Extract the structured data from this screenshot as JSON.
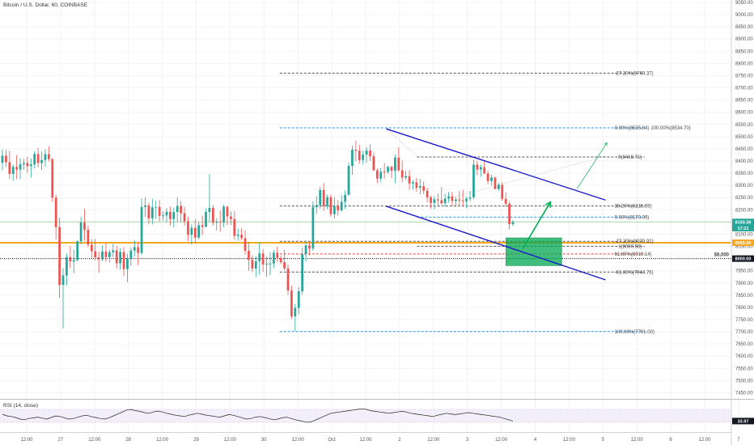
{
  "chart_data": {
    "type": "candlestick",
    "title": "Bitcoin / U.S. Dollar, 60, COINBASE",
    "price_axis": {
      "min": 7425,
      "max": 9060,
      "ticks": [
        9050,
        9000,
        8950,
        8900,
        8850,
        8800,
        8750,
        8700,
        8650,
        8600,
        8550,
        8500,
        8450,
        8400,
        8350,
        8300,
        8250,
        8200,
        8150,
        8100,
        8050,
        8000,
        7950,
        7900,
        7850,
        7800,
        7750,
        7700,
        7650,
        7600,
        7550,
        7500,
        7450
      ],
      "tick_labels": [
        "9050.00",
        "9000.00",
        "8950.00",
        "8900.00",
        "8850.00",
        "8800.00",
        "8750.00",
        "8700.00",
        "8650.00",
        "8600.00",
        "8550.00",
        "8500.00",
        "8450.00",
        "8400.00",
        "8350.00",
        "8300.00",
        "8250.00",
        "8200.00",
        "8150.00",
        "8100.00",
        "8050.00",
        "8000.00",
        "7950.00",
        "7900.00",
        "7850.00",
        "7800.00",
        "7750.00",
        "7700.00",
        "7650.00",
        "7600.00",
        "7550.00",
        "7500.00",
        "7450.00"
      ]
    },
    "time_axis": {
      "labels": [
        "12:00",
        "27",
        "12:00",
        "28",
        "12:00",
        "29",
        "12:00",
        "30",
        "12:00",
        "Oct",
        "12:00",
        "2",
        "12:00",
        "3",
        "12:00",
        "4",
        "12:00",
        "5",
        "12:00",
        "6",
        "12:00",
        "7"
      ]
    },
    "price_badges": [
      {
        "label": "8150.36",
        "value": 8150.36,
        "color": "#26a69a"
      },
      {
        "label": "17:21",
        "value": 8125,
        "color": "#26a69a"
      },
      {
        "label": "8065.00",
        "value": 8065,
        "color": "#f5a623"
      },
      {
        "label": "8000.00",
        "value": 8000,
        "color": "#131722"
      }
    ],
    "horizontal_lines": [
      {
        "value": 8150.36,
        "color": "#a5d6a7",
        "style": "solid"
      },
      {
        "value": 8065,
        "color": "#f5a623",
        "style": "solid",
        "label": ""
      },
      {
        "value": 8000,
        "color": "#000000",
        "style": "dotted",
        "label": "$8,000"
      }
    ],
    "fib_levels": [
      {
        "label": "-27.20%(8760.37)",
        "value": 8760.37,
        "color": "#555555"
      },
      {
        "label": "0.00%(8535.84)",
        "value": 8535.84,
        "color": "#2196f3",
        "extra": "100.00%(8534.70)"
      },
      {
        "label": "0(8416.71)",
        "value": 8416.71,
        "color": "#555555"
      },
      {
        "label": "38.20%(8215.69)",
        "value": 8215.69,
        "color": "#555555"
      },
      {
        "label": "0.00%(8170.09)",
        "value": 8170.09,
        "color": "#2196f3"
      },
      {
        "label": "-27.20%(8070.92)",
        "value": 8070.92,
        "color": "#555555"
      },
      {
        "label": "1(8050.56)",
        "value": 8050.56,
        "color": "#555555"
      },
      {
        "label": "61.80%(8019.14)",
        "value": 8019.14,
        "color": "#f44336"
      },
      {
        "label": "-61.80%(7944.76)",
        "value": 7944.76,
        "color": "#555555"
      },
      {
        "label": "100.00%(7701.00)",
        "value": 7701.0,
        "color": "#2196f3"
      }
    ],
    "rsi": {
      "title": "RSI (14, close)",
      "current_label": "33.97",
      "current": 33.97,
      "values": [
        55,
        50,
        48,
        45,
        40,
        38,
        42,
        44,
        46,
        43,
        40,
        45,
        50,
        48,
        44,
        40,
        42,
        46,
        50,
        52,
        48,
        45,
        42,
        40,
        44,
        50,
        56,
        62,
        68,
        70,
        66,
        64,
        60,
        58,
        62,
        65,
        62,
        58,
        55,
        52,
        50,
        48,
        52,
        55,
        58,
        55,
        52,
        50,
        48,
        46,
        50,
        54,
        52,
        48,
        44,
        40,
        42,
        46,
        48,
        45,
        42,
        38,
        40,
        44,
        46,
        42,
        38,
        35,
        32,
        30,
        34,
        40,
        46,
        52,
        58,
        60,
        62,
        64,
        66,
        68,
        70,
        72,
        70,
        66,
        64,
        62,
        60,
        58,
        60,
        62,
        64,
        62,
        58,
        56,
        54,
        52,
        50,
        48,
        52,
        55,
        58,
        56,
        54,
        56,
        58,
        60,
        58,
        56,
        54,
        52,
        50,
        48,
        46,
        42,
        38,
        34
      ]
    },
    "candles": [
      [
        8393,
        8448,
        8362,
        8422
      ],
      [
        8422,
        8447,
        8376,
        8395
      ],
      [
        8395,
        8442,
        8327,
        8347
      ],
      [
        8347,
        8385,
        8319,
        8376
      ],
      [
        8376,
        8425,
        8326,
        8365
      ],
      [
        8365,
        8411,
        8325,
        8387
      ],
      [
        8387,
        8409,
        8364,
        8392
      ],
      [
        8392,
        8418,
        8351,
        8379
      ],
      [
        8379,
        8410,
        8332,
        8386
      ],
      [
        8386,
        8441,
        8369,
        8429
      ],
      [
        8429,
        8454,
        8374,
        8392
      ],
      [
        8392,
        8439,
        8364,
        8404
      ],
      [
        8404,
        8448,
        8377,
        8428
      ],
      [
        8428,
        8460,
        8398,
        8408
      ],
      [
        8408,
        8412,
        8233,
        8250
      ],
      [
        8250,
        8262,
        8079,
        8129
      ],
      [
        8129,
        8168,
        7839,
        7892
      ],
      [
        7892,
        7961,
        7714,
        7931
      ],
      [
        7931,
        8021,
        7890,
        8006
      ],
      [
        8006,
        8051,
        7960,
        7988
      ],
      [
        7988,
        8036,
        7941,
        7994
      ],
      [
        7994,
        8075,
        7988,
        8071
      ],
      [
        8071,
        8172,
        8058,
        8148
      ],
      [
        8148,
        8203,
        8072,
        8118
      ],
      [
        8118,
        8136,
        8047,
        8057
      ],
      [
        8057,
        8080,
        7997,
        8030
      ],
      [
        8030,
        8081,
        7992,
        8005
      ],
      [
        8005,
        8029,
        7942,
        7997
      ],
      [
        7997,
        8054,
        7990,
        8029
      ],
      [
        8029,
        8064,
        7987,
        8006
      ],
      [
        8006,
        8036,
        7985,
        8026
      ],
      [
        8026,
        8060,
        8006,
        8034
      ],
      [
        8034,
        8052,
        7960,
        7981
      ],
      [
        7981,
        8043,
        7954,
        8027
      ],
      [
        8027,
        8047,
        7929,
        7957
      ],
      [
        7957,
        8020,
        7904,
        8002
      ],
      [
        8002,
        8046,
        7970,
        8033
      ],
      [
        8033,
        8075,
        8009,
        8047
      ],
      [
        8047,
        8066,
        7973,
        8023
      ],
      [
        8023,
        8247,
        8014,
        8212
      ],
      [
        8212,
        8252,
        8171,
        8218
      ],
      [
        8218,
        8230,
        8140,
        8165
      ],
      [
        8165,
        8245,
        8140,
        8210
      ],
      [
        8210,
        8237,
        8163,
        8212
      ],
      [
        8212,
        8240,
        8152,
        8175
      ],
      [
        8175,
        8194,
        8156,
        8177
      ],
      [
        8177,
        8207,
        8149,
        8192
      ],
      [
        8192,
        8213,
        8136,
        8162
      ],
      [
        8162,
        8209,
        8128,
        8191
      ],
      [
        8191,
        8251,
        8151,
        8216
      ],
      [
        8216,
        8236,
        8152,
        8186
      ],
      [
        8186,
        8212,
        8135,
        8153
      ],
      [
        8153,
        8172,
        8072,
        8097
      ],
      [
        8097,
        8141,
        8057,
        8126
      ],
      [
        8126,
        8161,
        8063,
        8086
      ],
      [
        8086,
        8150,
        8079,
        8137
      ],
      [
        8137,
        8176,
        8096,
        8130
      ],
      [
        8130,
        8207,
        8129,
        8191
      ],
      [
        8191,
        8347,
        8150,
        8208
      ],
      [
        8208,
        8220,
        8135,
        8147
      ],
      [
        8147,
        8166,
        8115,
        8151
      ],
      [
        8151,
        8197,
        8110,
        8148
      ],
      [
        8148,
        8221,
        8129,
        8213
      ],
      [
        8213,
        8216,
        8137,
        8173
      ],
      [
        8173,
        8193,
        8138,
        8162
      ],
      [
        8162,
        8195,
        8077,
        8093
      ],
      [
        8093,
        8122,
        8073,
        8098
      ],
      [
        8098,
        8124,
        8075,
        8084
      ],
      [
        8084,
        8116,
        8016,
        8032
      ],
      [
        8032,
        8069,
        7950,
        7995
      ],
      [
        7995,
        8014,
        7944,
        7959
      ],
      [
        7959,
        8011,
        7925,
        7989
      ],
      [
        7989,
        8067,
        7934,
        8021
      ],
      [
        8021,
        8039,
        7946,
        7976
      ],
      [
        7976,
        8008,
        7925,
        7979
      ],
      [
        7979,
        8026,
        7932,
        7980
      ],
      [
        7980,
        8035,
        7961,
        8024
      ],
      [
        8024,
        8049,
        7986,
        8003
      ],
      [
        8003,
        8013,
        7977,
        7985
      ],
      [
        7985,
        8036,
        7952,
        7960
      ],
      [
        7960,
        7976,
        7851,
        7869
      ],
      [
        7869,
        7889,
        7753,
        7763
      ],
      [
        7763,
        7815,
        7703,
        7798
      ],
      [
        7798,
        7883,
        7772,
        7866
      ],
      [
        7866,
        8045,
        7852,
        8018
      ],
      [
        8018,
        8068,
        7989,
        8054
      ],
      [
        8054,
        8066,
        8013,
        8041
      ],
      [
        8041,
        8234,
        8032,
        8211
      ],
      [
        8211,
        8256,
        8183,
        8219
      ],
      [
        8219,
        8294,
        8204,
        8281
      ],
      [
        8281,
        8310,
        8195,
        8216
      ],
      [
        8216,
        8262,
        8202,
        8252
      ],
      [
        8252,
        8262,
        8172,
        8182
      ],
      [
        8182,
        8250,
        8164,
        8216
      ],
      [
        8216,
        8240,
        8176,
        8198
      ],
      [
        8198,
        8260,
        8192,
        8233
      ],
      [
        8233,
        8279,
        8204,
        8261
      ],
      [
        8261,
        8394,
        8260,
        8380
      ],
      [
        8380,
        8464,
        8344,
        8446
      ],
      [
        8446,
        8483,
        8400,
        8442
      ],
      [
        8442,
        8467,
        8389,
        8404
      ],
      [
        8404,
        8442,
        8386,
        8426
      ],
      [
        8426,
        8457,
        8394,
        8443
      ],
      [
        8443,
        8469,
        8400,
        8419
      ],
      [
        8419,
        8434,
        8360,
        8362
      ],
      [
        8362,
        8369,
        8310,
        8328
      ],
      [
        8328,
        8371,
        8314,
        8356
      ],
      [
        8356,
        8391,
        8328,
        8355
      ],
      [
        8355,
        8381,
        8348,
        8376
      ],
      [
        8376,
        8381,
        8331,
        8360
      ],
      [
        8360,
        8426,
        8309,
        8414
      ],
      [
        8414,
        8457,
        8357,
        8362
      ],
      [
        8362,
        8401,
        8314,
        8332
      ],
      [
        8332,
        8359,
        8323,
        8338
      ],
      [
        8338,
        8362,
        8282,
        8308
      ],
      [
        8308,
        8321,
        8283,
        8313
      ],
      [
        8313,
        8331,
        8273,
        8290
      ],
      [
        8290,
        8327,
        8264,
        8297
      ],
      [
        8297,
        8315,
        8265,
        8278
      ],
      [
        8278,
        8290,
        8231,
        8251
      ],
      [
        8251,
        8259,
        8205,
        8228
      ],
      [
        8228,
        8256,
        8202,
        8243
      ],
      [
        8243,
        8267,
        8213,
        8239
      ],
      [
        8239,
        8293,
        8220,
        8227
      ],
      [
        8227,
        8266,
        8214,
        8246
      ],
      [
        8246,
        8273,
        8230,
        8255
      ],
      [
        8255,
        8275,
        8215,
        8236
      ],
      [
        8236,
        8252,
        8216,
        8242
      ],
      [
        8242,
        8277,
        8218,
        8238
      ],
      [
        8238,
        8282,
        8213,
        8235
      ],
      [
        8235,
        8254,
        8207,
        8246
      ],
      [
        8246,
        8277,
        8236,
        8251
      ],
      [
        8251,
        8405,
        8243,
        8385
      ],
      [
        8385,
        8401,
        8342,
        8365
      ],
      [
        8365,
        8385,
        8335,
        8375
      ],
      [
        8375,
        8398,
        8346,
        8349
      ],
      [
        8349,
        8361,
        8304,
        8318
      ],
      [
        8318,
        8344,
        8300,
        8332
      ],
      [
        8332,
        8336,
        8285,
        8285
      ],
      [
        8285,
        8310,
        8279,
        8302
      ],
      [
        8302,
        8312,
        8237,
        8245
      ],
      [
        8245,
        8271,
        8213,
        8225
      ],
      [
        8225,
        8233,
        8119,
        8141
      ],
      [
        8141,
        8158,
        8134,
        8150
      ]
    ],
    "channel_lines": [
      {
        "from": [
          0.512,
          8532
        ],
        "to": [
          0.803,
          8240
        ],
        "color": "#1a1ac8"
      },
      {
        "from": [
          0.512,
          8215
        ],
        "to": [
          0.803,
          7913
        ],
        "color": "#1a1ac8"
      }
    ],
    "arrows": [
      {
        "from": [
          0.693,
          8040
        ],
        "to": [
          0.73,
          8232
        ],
        "color": "#00b050",
        "style": "solid"
      },
      {
        "from": [
          0.765,
          8285
        ],
        "to": [
          0.805,
          8475
        ],
        "color": "#00b050",
        "style": "thin"
      }
    ],
    "target_box": {
      "x1": 0.671,
      "x2": 0.745,
      "top": 8085,
      "bottom": 7971,
      "color": "#00a651"
    }
  }
}
